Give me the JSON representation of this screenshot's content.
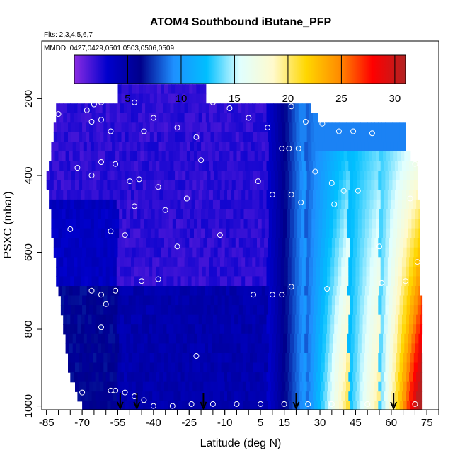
{
  "chart_data": {
    "type": "heatmap",
    "title": "ATOM4 Southbound iButane_PFP",
    "notes": [
      "Flts: 2,3,4,5,6,7",
      "MMDD: 0427,0429,0501,0503,0506,0509"
    ],
    "xlabel": "Latitude (deg N)",
    "ylabel": "PSXC (mbar)",
    "xlim": [
      -87,
      80
    ],
    "ylim": [
      1010,
      50
    ],
    "y_reversed": true,
    "x_ticks": [
      -85,
      -70,
      -55,
      -40,
      -25,
      -10,
      5,
      15,
      30,
      45,
      60,
      75
    ],
    "y_ticks": [
      200,
      400,
      600,
      800,
      1000
    ],
    "colorbar": {
      "range": [
        0,
        31
      ],
      "ticks": [
        5,
        10,
        15,
        20,
        25,
        30
      ],
      "colors": [
        "#8a2be2",
        "#0000cd",
        "#00008b",
        "#1e90ff",
        "#00bfff",
        "#e0ffff",
        "#fffacd",
        "#ffd700",
        "#ff8c00",
        "#ff0000",
        "#b22222"
      ]
    },
    "pressure_levels": [
      175,
      200,
      225,
      250,
      275,
      300,
      325,
      350,
      375,
      400,
      425,
      450,
      475,
      500,
      525,
      550,
      575,
      600,
      625,
      650,
      675,
      700,
      725,
      750,
      775,
      800,
      825,
      850,
      875,
      900,
      925,
      950,
      975,
      1000
    ],
    "coverage_min_lat": [
      -55,
      -55,
      -81,
      -81,
      -82,
      -82,
      -83,
      -83,
      -84,
      -85,
      -85,
      -84,
      -84,
      -83,
      -83,
      -83,
      -82,
      -82,
      -81,
      -81,
      -81,
      -80,
      -79,
      -79,
      -78,
      -78,
      -77,
      -77,
      -76,
      -76,
      -75,
      -73,
      -72,
      -70
    ],
    "coverage_max_lat": [
      -18,
      -18,
      26,
      29,
      66,
      66,
      66,
      68,
      71,
      71,
      71,
      71,
      72,
      72,
      72,
      72,
      72,
      72,
      72,
      72,
      72,
      72,
      73,
      73,
      73,
      73,
      73,
      73,
      73,
      73,
      73,
      73,
      73,
      73
    ],
    "samples": [
      {
        "lat": -80,
        "p": 240
      },
      {
        "lat": -68,
        "p": 230
      },
      {
        "lat": -65,
        "p": 215
      },
      {
        "lat": -62,
        "p": 210
      },
      {
        "lat": -66,
        "p": 260
      },
      {
        "lat": -62,
        "p": 255
      },
      {
        "lat": -58,
        "p": 285
      },
      {
        "lat": -48,
        "p": 210
      },
      {
        "lat": -44,
        "p": 285
      },
      {
        "lat": -40,
        "p": 250
      },
      {
        "lat": -30,
        "p": 275
      },
      {
        "lat": -22,
        "p": 300
      },
      {
        "lat": -15,
        "p": 210
      },
      {
        "lat": -8,
        "p": 225
      },
      {
        "lat": 0,
        "p": 250
      },
      {
        "lat": 8,
        "p": 275
      },
      {
        "lat": 18,
        "p": 220
      },
      {
        "lat": 24,
        "p": 260
      },
      {
        "lat": 31,
        "p": 265
      },
      {
        "lat": 38,
        "p": 285
      },
      {
        "lat": 44,
        "p": 285
      },
      {
        "lat": 52,
        "p": 290
      },
      {
        "lat": -86,
        "p": 440
      },
      {
        "lat": -72,
        "p": 380
      },
      {
        "lat": -66,
        "p": 400
      },
      {
        "lat": -62,
        "p": 365
      },
      {
        "lat": -56,
        "p": 370
      },
      {
        "lat": -50,
        "p": 415
      },
      {
        "lat": -46,
        "p": 410
      },
      {
        "lat": -38,
        "p": 430
      },
      {
        "lat": -20,
        "p": 360
      },
      {
        "lat": 4,
        "p": 415
      },
      {
        "lat": 14,
        "p": 330
      },
      {
        "lat": 17,
        "p": 330
      },
      {
        "lat": 21,
        "p": 330
      },
      {
        "lat": 28,
        "p": 390
      },
      {
        "lat": 35,
        "p": 420
      },
      {
        "lat": 40,
        "p": 440
      },
      {
        "lat": 46,
        "p": 440
      },
      {
        "lat": 70,
        "p": 370
      },
      {
        "lat": 68,
        "p": 460
      },
      {
        "lat": -75,
        "p": 540
      },
      {
        "lat": -58,
        "p": 545
      },
      {
        "lat": -52,
        "p": 555
      },
      {
        "lat": -48,
        "p": 480
      },
      {
        "lat": -35,
        "p": 490
      },
      {
        "lat": -30,
        "p": 585
      },
      {
        "lat": -26,
        "p": 460
      },
      {
        "lat": -12,
        "p": 555
      },
      {
        "lat": 10,
        "p": 450
      },
      {
        "lat": 18,
        "p": 450
      },
      {
        "lat": 22,
        "p": 470
      },
      {
        "lat": 36,
        "p": 475
      },
      {
        "lat": 55,
        "p": 585
      },
      {
        "lat": 71,
        "p": 625
      },
      {
        "lat": -66,
        "p": 700
      },
      {
        "lat": -62,
        "p": 710
      },
      {
        "lat": -60,
        "p": 735
      },
      {
        "lat": -56,
        "p": 700
      },
      {
        "lat": -45,
        "p": 675
      },
      {
        "lat": -38,
        "p": 670
      },
      {
        "lat": 2,
        "p": 710
      },
      {
        "lat": 10,
        "p": 710
      },
      {
        "lat": 14,
        "p": 710
      },
      {
        "lat": 18,
        "p": 690
      },
      {
        "lat": 33,
        "p": 695
      },
      {
        "lat": 56,
        "p": 680
      },
      {
        "lat": 66,
        "p": 675
      },
      {
        "lat": -62,
        "p": 795
      },
      {
        "lat": -22,
        "p": 870
      },
      {
        "lat": -70,
        "p": 965
      },
      {
        "lat": -58,
        "p": 960
      },
      {
        "lat": -56,
        "p": 960
      },
      {
        "lat": -52,
        "p": 965
      },
      {
        "lat": -48,
        "p": 975
      },
      {
        "lat": -44,
        "p": 985
      },
      {
        "lat": -40,
        "p": 1000
      },
      {
        "lat": -32,
        "p": 1000
      },
      {
        "lat": -24,
        "p": 995
      },
      {
        "lat": -15,
        "p": 995
      },
      {
        "lat": -5,
        "p": 995
      },
      {
        "lat": 5,
        "p": 995
      },
      {
        "lat": 15,
        "p": 995
      },
      {
        "lat": 25,
        "p": 995
      },
      {
        "lat": 35,
        "p": 995
      },
      {
        "lat": 50,
        "p": 995
      },
      {
        "lat": 70,
        "p": 995
      }
    ],
    "arrow_latitudes": [
      -54,
      -47,
      -19,
      20,
      61
    ]
  }
}
